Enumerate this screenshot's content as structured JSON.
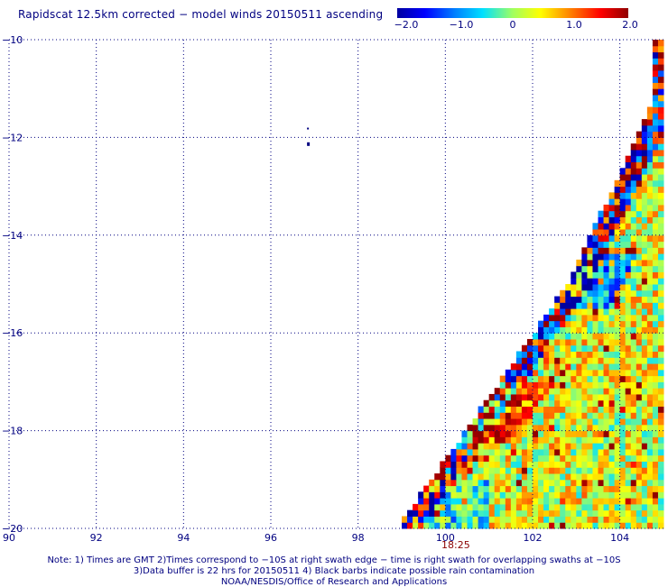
{
  "title": "Rapidscat 12.5km corrected − model winds 20150511 ascending",
  "colorbar": {
    "labels": [
      "−2.0",
      "−1.0",
      "0",
      "1.0",
      "2.0"
    ],
    "stops": [
      "#0000a0",
      "#0000ff",
      "#0080ff",
      "#00e0ff",
      "#a0ff60",
      "#ffff00",
      "#ff8000",
      "#ff0000",
      "#900000"
    ]
  },
  "chart_data": {
    "type": "heatmap",
    "x_ticks": [
      "90",
      "92",
      "94",
      "96",
      "98",
      "100",
      "102",
      "104"
    ],
    "y_ticks": [
      "−10",
      "−12",
      "−14",
      "−16",
      "−18",
      "−20"
    ],
    "xlim": [
      90,
      105
    ],
    "ylim": [
      -20,
      -10
    ],
    "value_range": [
      -2.0,
      2.0
    ],
    "swath_edge_points": [
      [
        98.9,
        -20
      ],
      [
        102.8,
        -15.0
      ],
      [
        104.8,
        -11.2
      ]
    ],
    "time_label": "18:25"
  },
  "notes": {
    "line1": "Note: 1) Times are GMT 2)Times correspond to −10S at right swath edge − time is right swath for overlapping swaths at −10S",
    "line2": "3)Data buffer is 22 hrs for 20150511 4) Black barbs indicate possible rain contamination",
    "line3": "NOAA/NESDIS/Office of Research and Applications"
  }
}
